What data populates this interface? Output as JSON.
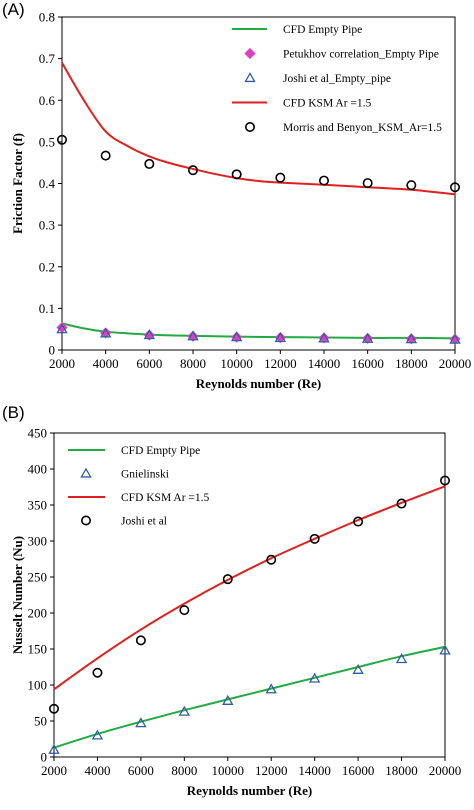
{
  "chart_data": [
    {
      "type": "line",
      "panel_label": "(A)",
      "xlabel": "Reynolds number (Re)",
      "ylabel": "Friction Factor (f)",
      "xlim": [
        2000,
        20000
      ],
      "ylim": [
        0,
        0.8
      ],
      "xticks": [
        2000,
        4000,
        6000,
        8000,
        10000,
        12000,
        14000,
        16000,
        18000,
        20000
      ],
      "yticks": [
        0,
        0.1,
        0.2,
        0.3,
        0.4,
        0.5,
        0.6,
        0.7,
        0.8
      ],
      "ytick_decimals": 1,
      "grid": false,
      "legend_position": "top-right",
      "series": [
        {
          "name": "CFD Empty Pipe",
          "style": "line",
          "color": "#22aa44",
          "x": [
            2000,
            3000,
            4000,
            5000,
            6000,
            7000,
            8000,
            10000,
            12000,
            14000,
            16000,
            18000,
            20000
          ],
          "y": [
            0.064,
            0.052,
            0.044,
            0.04,
            0.037,
            0.035,
            0.034,
            0.032,
            0.031,
            0.03,
            0.029,
            0.029,
            0.028
          ]
        },
        {
          "name": "Petukhov correlation_Empty Pipe",
          "style": "diamond",
          "color": "#e040c0",
          "x": [
            2000,
            4000,
            6000,
            8000,
            10000,
            12000,
            14000,
            16000,
            18000,
            20000
          ],
          "y": [
            0.054,
            0.041,
            0.036,
            0.033,
            0.031,
            0.03,
            0.029,
            0.028,
            0.027,
            0.026
          ]
        },
        {
          "name": "Joshi et al_Empty_pipe",
          "style": "triangle",
          "color": "#2d5fa0",
          "x": [
            2000,
            4000,
            6000,
            8000,
            10000,
            12000,
            14000,
            16000,
            18000,
            20000
          ],
          "y": [
            0.05,
            0.04,
            0.036,
            0.033,
            0.031,
            0.029,
            0.028,
            0.027,
            0.026,
            0.025
          ]
        },
        {
          "name": "CFD KSM Ar =1.5",
          "style": "line",
          "color": "#e02020",
          "x": [
            2000,
            3000,
            4000,
            5000,
            6000,
            7000,
            8000,
            9000,
            10000,
            11000,
            12000,
            14000,
            16000,
            18000,
            20000
          ],
          "y": [
            0.69,
            0.6,
            0.525,
            0.49,
            0.465,
            0.448,
            0.435,
            0.423,
            0.413,
            0.406,
            0.402,
            0.397,
            0.391,
            0.385,
            0.374
          ]
        },
        {
          "name": "Morris and Benyon_KSM_Ar=1.5",
          "style": "circle",
          "color": "#000000",
          "x": [
            2000,
            4000,
            6000,
            8000,
            10000,
            12000,
            14000,
            16000,
            18000,
            20000
          ],
          "y": [
            0.505,
            0.467,
            0.447,
            0.432,
            0.422,
            0.414,
            0.407,
            0.401,
            0.396,
            0.391
          ]
        }
      ]
    },
    {
      "type": "line",
      "panel_label": "(B)",
      "xlabel": "Reynolds number (Re)",
      "ylabel": "Nusselt Number (Nu)",
      "xlim": [
        2000,
        20000
      ],
      "ylim": [
        0,
        450
      ],
      "xticks": [
        2000,
        4000,
        6000,
        8000,
        10000,
        12000,
        14000,
        16000,
        18000,
        20000
      ],
      "yticks": [
        0,
        50,
        100,
        150,
        200,
        250,
        300,
        350,
        400,
        450
      ],
      "ytick_decimals": 0,
      "grid": false,
      "legend_position": "top-left",
      "series": [
        {
          "name": "CFD Empty Pipe",
          "style": "line",
          "color": "#22aa44",
          "x": [
            2000,
            4000,
            6000,
            8000,
            10000,
            12000,
            14000,
            16000,
            18000,
            20000
          ],
          "y": [
            13,
            32,
            49,
            65,
            80,
            95,
            110,
            125,
            140,
            153
          ]
        },
        {
          "name": "Gnielinski",
          "style": "triangle",
          "color": "#2d5fa0",
          "x": [
            2000,
            4000,
            6000,
            8000,
            10000,
            12000,
            14000,
            16000,
            18000,
            20000
          ],
          "y": [
            10,
            30,
            47,
            63,
            78,
            94,
            109,
            121,
            136,
            148
          ]
        },
        {
          "name": "CFD KSM Ar =1.5",
          "style": "line",
          "color": "#e02020",
          "x": [
            2000,
            4000,
            6000,
            8000,
            10000,
            12000,
            14000,
            16000,
            18000,
            20000
          ],
          "y": [
            94,
            137,
            177,
            213,
            246,
            276,
            303,
            329,
            353,
            376
          ]
        },
        {
          "name": "Joshi et al",
          "style": "circle",
          "color": "#000000",
          "x": [
            2000,
            4000,
            6000,
            8000,
            10000,
            12000,
            14000,
            16000,
            18000,
            20000
          ],
          "y": [
            67,
            117,
            162,
            204,
            247,
            274,
            303,
            327,
            352,
            384
          ]
        }
      ]
    }
  ]
}
